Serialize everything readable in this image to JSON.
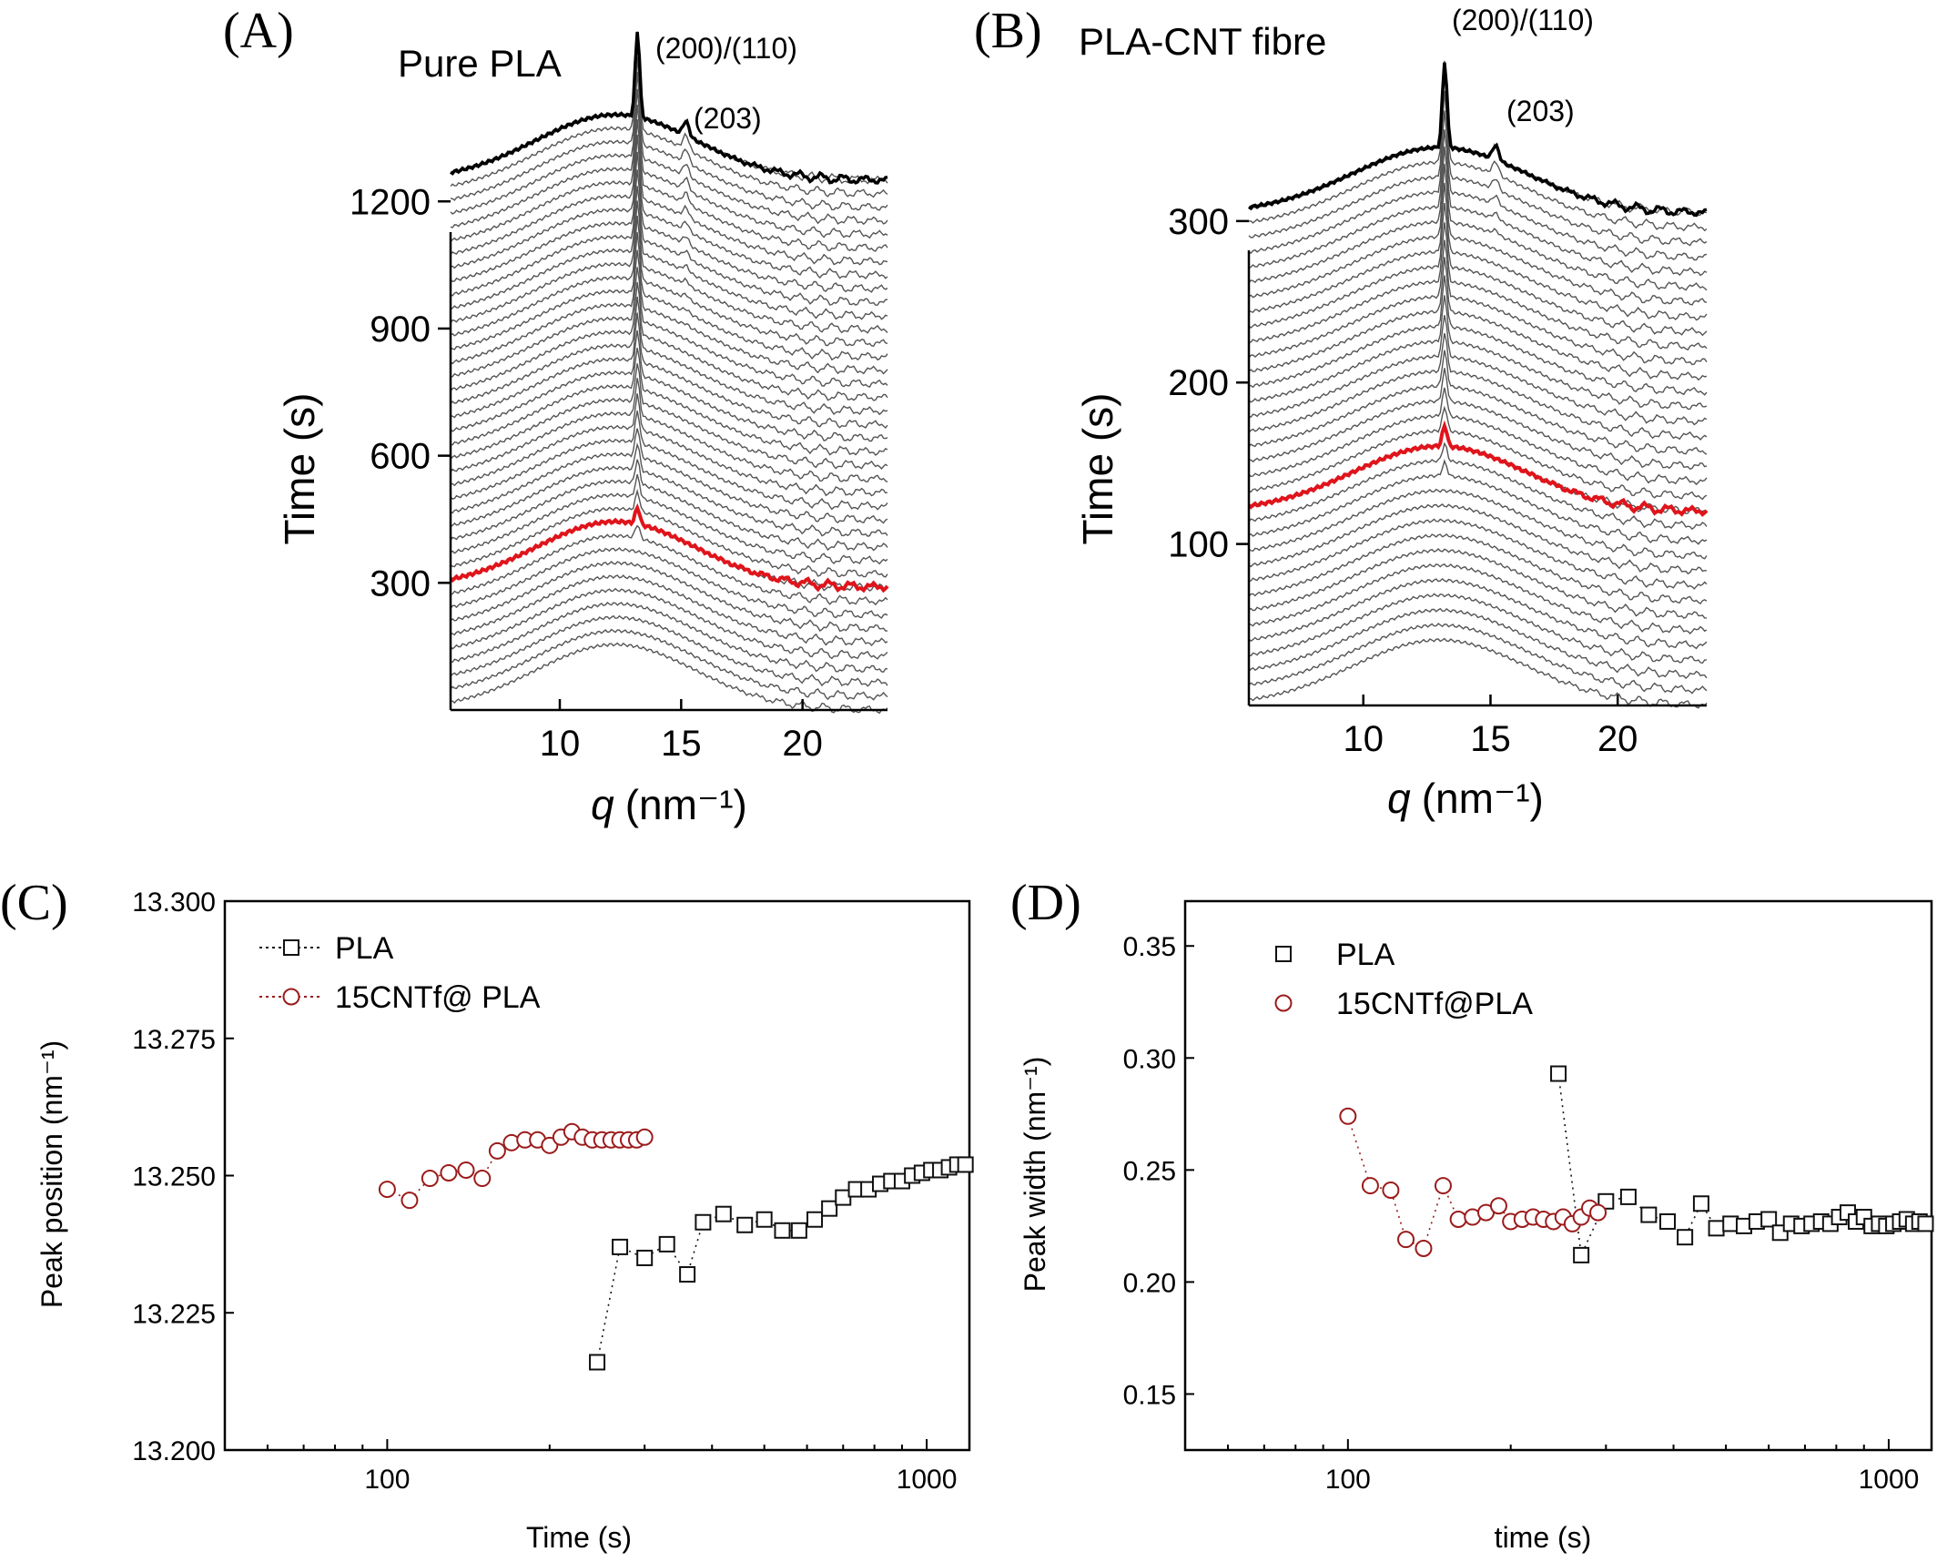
{
  "colors": {
    "trace": "#555555",
    "final_trace": "#000000",
    "highlight": "#e0141b",
    "pla_marker": "#111111",
    "cnt_marker": "#9b1b1b"
  },
  "chart_data": [
    {
      "panel": "(A)",
      "type": "line",
      "title": "Pure PLA",
      "xlabel": "q",
      "xlabel_unit": "(nm⁻¹)",
      "ylabel": "Time (s)",
      "xlim": [
        5.5,
        23.5
      ],
      "ylim": [
        0,
        1600
      ],
      "xticks": [
        10,
        15,
        20
      ],
      "yticks": [
        300,
        600,
        900,
        1200
      ],
      "annotations": [
        "(200)/(110)",
        "(203)"
      ],
      "description": "waterfall of WAXS profiles vs q, offset by time",
      "traces": {
        "n_traces": 40,
        "time_start": 0,
        "time_end": 1250,
        "highlight_time": 290,
        "amorphous_center_q": 12.3,
        "amorphous_width_q": 3.3,
        "peaks": [
          {
            "label": "(200)/(110)",
            "q": 13.2,
            "onset_time": 245
          },
          {
            "label": "(203)",
            "q": 15.2,
            "onset_time": 800
          }
        ]
      }
    },
    {
      "panel": "(B)",
      "type": "line",
      "title": "PLA-CNT fibre",
      "xlabel": "q",
      "xlabel_unit": "(nm⁻¹)",
      "ylabel": "Time (s)",
      "xlim": [
        5.5,
        23.5
      ],
      "ylim": [
        0,
        420
      ],
      "xticks": [
        10,
        15,
        20
      ],
      "yticks": [
        100,
        200,
        300
      ],
      "annotations": [
        "(200)/(110)",
        "(203)"
      ],
      "description": "waterfall of WAXS profiles vs q, offset by time",
      "traces": {
        "n_traces": 34,
        "time_start": 0,
        "time_end": 305,
        "highlight_time": 120,
        "amorphous_center_q": 13.0,
        "amorphous_width_q": 3.4,
        "peaks": [
          {
            "label": "(200)/(110)",
            "q": 13.2,
            "onset_time": 100
          },
          {
            "label": "(203)",
            "q": 15.2,
            "onset_time": 250
          }
        ]
      }
    },
    {
      "panel": "(C)",
      "type": "scatter",
      "xlabel": "Time (s)",
      "ylabel": "Peak position (nm⁻¹)",
      "x_scale": "log",
      "xlim": [
        50,
        1200
      ],
      "ylim": [
        13.2,
        13.3
      ],
      "xticks": [
        100,
        1000
      ],
      "yticks": [
        "13.200",
        "13.225",
        "13.250",
        "13.275",
        "13.300"
      ],
      "legend_position": "top-left",
      "series": [
        {
          "name": "PLA",
          "marker": "square",
          "x": [
            245,
            270,
            300,
            330,
            360,
            385,
            420,
            460,
            500,
            540,
            580,
            620,
            660,
            700,
            740,
            780,
            820,
            860,
            900,
            940,
            980,
            1020,
            1060,
            1100,
            1140,
            1180
          ],
          "y": [
            13.216,
            13.237,
            13.235,
            13.2375,
            13.232,
            13.2415,
            13.243,
            13.241,
            13.242,
            13.24,
            13.24,
            13.242,
            13.244,
            13.246,
            13.2475,
            13.2475,
            13.2485,
            13.249,
            13.249,
            13.25,
            13.2505,
            13.251,
            13.251,
            13.2515,
            13.252,
            13.252
          ]
        },
        {
          "name": "15CNTf@ PLA",
          "marker": "circle",
          "x": [
            100,
            110,
            120,
            130,
            140,
            150,
            160,
            170,
            180,
            190,
            200,
            210,
            220,
            230,
            240,
            250,
            260,
            270,
            280,
            290,
            300
          ],
          "y": [
            13.2475,
            13.2455,
            13.2495,
            13.2505,
            13.251,
            13.2495,
            13.2545,
            13.256,
            13.2565,
            13.2565,
            13.2555,
            13.257,
            13.258,
            13.257,
            13.2565,
            13.2565,
            13.2565,
            13.2565,
            13.2565,
            13.2565,
            13.257
          ]
        }
      ]
    },
    {
      "panel": "(D)",
      "type": "scatter",
      "xlabel": "time (s)",
      "ylabel": "Peak width (nm⁻¹)",
      "x_scale": "log",
      "xlim": [
        50,
        1200
      ],
      "ylim": [
        0.125,
        0.37
      ],
      "xticks": [
        100,
        1000
      ],
      "yticks": [
        "0.15",
        "0.20",
        "0.25",
        "0.30",
        "0.35"
      ],
      "legend_position": "top-left",
      "series": [
        {
          "name": "PLA",
          "marker": "square",
          "x": [
            245,
            270,
            300,
            330,
            360,
            390,
            420,
            450,
            480,
            510,
            540,
            570,
            600,
            630,
            660,
            690,
            720,
            750,
            780,
            810,
            840,
            870,
            900,
            930,
            960,
            990,
            1020,
            1050,
            1080,
            1110,
            1140,
            1170
          ],
          "y": [
            0.293,
            0.212,
            0.236,
            0.238,
            0.23,
            0.227,
            0.22,
            0.235,
            0.224,
            0.226,
            0.225,
            0.227,
            0.228,
            0.222,
            0.226,
            0.225,
            0.226,
            0.227,
            0.226,
            0.229,
            0.231,
            0.227,
            0.229,
            0.225,
            0.226,
            0.225,
            0.226,
            0.227,
            0.228,
            0.226,
            0.227,
            0.226
          ]
        },
        {
          "name": "15CNTf@PLA",
          "marker": "circle",
          "x": [
            100,
            110,
            120,
            128,
            138,
            150,
            160,
            170,
            180,
            190,
            200,
            210,
            220,
            230,
            240,
            250,
            260,
            270,
            280,
            290
          ],
          "y": [
            0.274,
            0.243,
            0.241,
            0.219,
            0.215,
            0.243,
            0.228,
            0.229,
            0.231,
            0.234,
            0.227,
            0.228,
            0.229,
            0.228,
            0.227,
            0.229,
            0.226,
            0.229,
            0.233,
            0.231
          ]
        }
      ]
    }
  ]
}
